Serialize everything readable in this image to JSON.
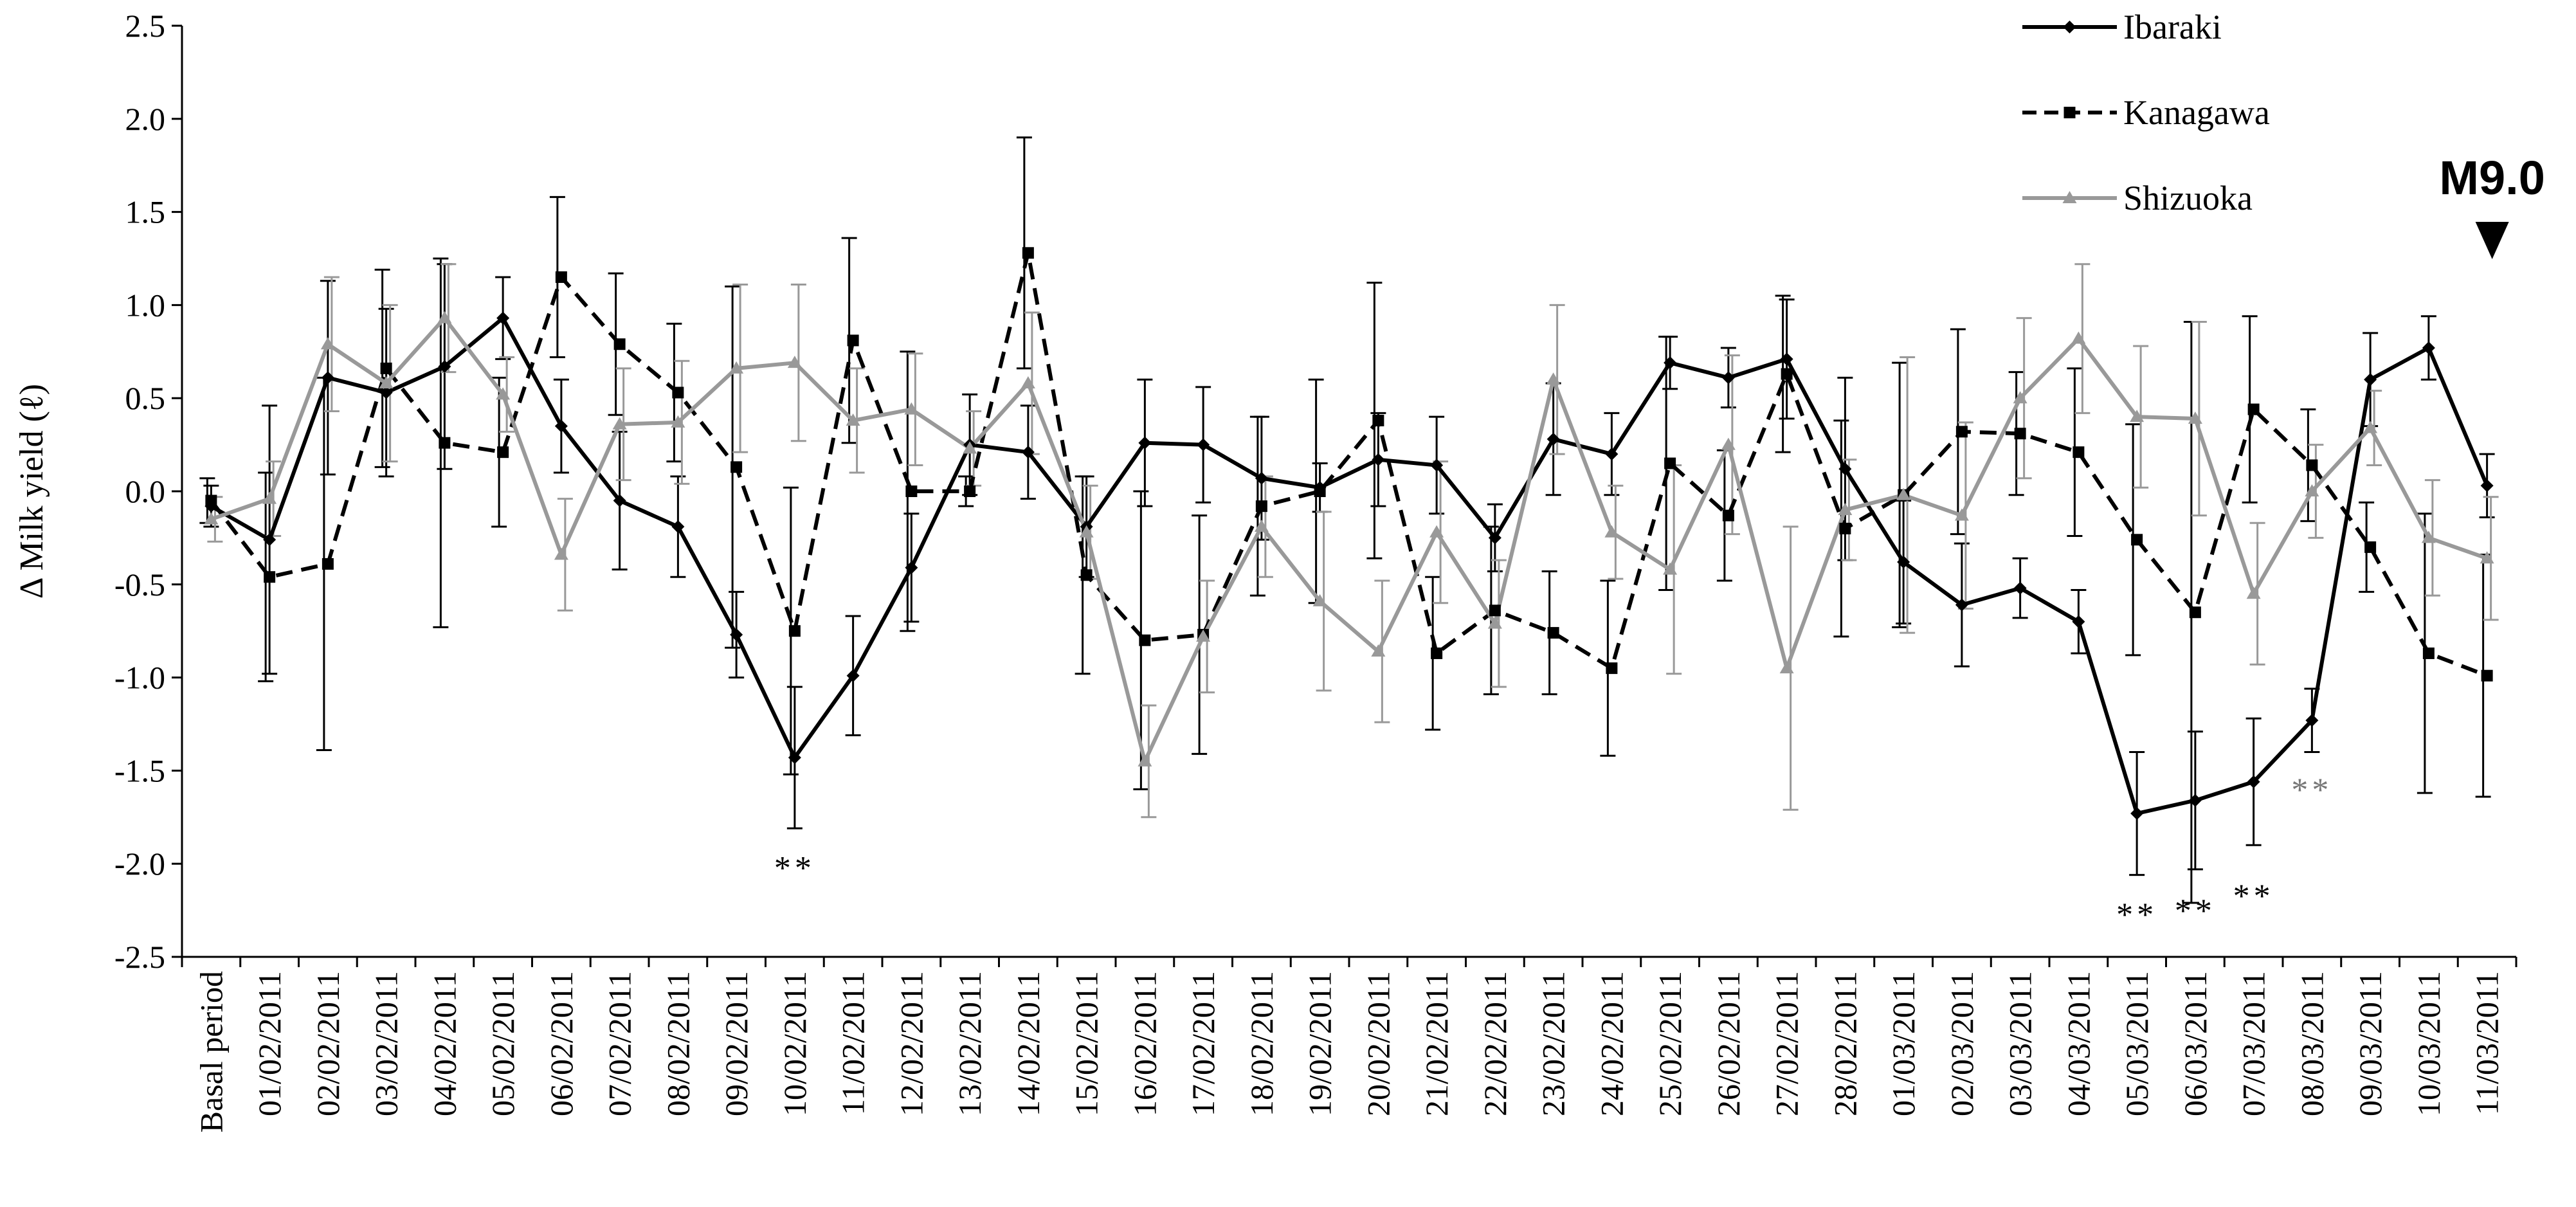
{
  "chart_data": {
    "type": "line",
    "ylabel": "Δ Milk yield (ℓ)",
    "xlabel": "",
    "ylim": [
      -2.5,
      2.5
    ],
    "yticks": [
      2.5,
      2.0,
      1.5,
      1.0,
      0.5,
      0.0,
      -0.5,
      -1.0,
      -1.5,
      -2.0,
      -2.5
    ],
    "ytick_labels": [
      "2.5",
      "2.0",
      "1.5",
      "1.0",
      "0.5",
      "0.0",
      "-0.5",
      "-1.0",
      "-1.5",
      "-2.0",
      "-2.5"
    ],
    "grid": false,
    "legend_position": "top-right",
    "categories": [
      "Basal period",
      "01/02/2011",
      "02/02/2011",
      "03/02/2011",
      "04/02/2011",
      "05/02/2011",
      "06/02/2011",
      "07/02/2011",
      "08/02/2011",
      "09/02/2011",
      "10/02/2011",
      "11/02/2011",
      "12/02/2011",
      "13/02/2011",
      "14/02/2011",
      "15/02/2011",
      "16/02/2011",
      "17/02/2011",
      "18/02/2011",
      "19/02/2011",
      "20/02/2011",
      "21/02/2011",
      "22/02/2011",
      "23/02/2011",
      "24/02/2011",
      "25/02/2011",
      "26/02/2011",
      "27/02/2011",
      "28/02/2011",
      "01/03/2011",
      "02/03/2011",
      "03/03/2011",
      "04/03/2011",
      "05/03/2011",
      "06/03/2011",
      "07/03/2011",
      "08/03/2011",
      "09/03/2011",
      "10/03/2011",
      "11/03/2011"
    ],
    "series": [
      {
        "name": "Ibaraki",
        "color": "#000000",
        "dash": "solid",
        "marker": "diamond",
        "values": [
          -0.08,
          -0.26,
          0.61,
          0.53,
          0.67,
          0.93,
          0.35,
          -0.05,
          -0.19,
          -0.77,
          -1.43,
          -0.99,
          -0.41,
          0.25,
          0.21,
          -0.19,
          0.26,
          0.25,
          0.07,
          0.02,
          0.17,
          0.14,
          -0.25,
          0.28,
          0.2,
          0.69,
          0.61,
          0.71,
          0.12,
          -0.38,
          -0.61,
          -0.52,
          -0.7,
          -1.73,
          -1.66,
          -1.56,
          -1.23,
          0.6,
          0.77,
          0.03
        ],
        "errors": [
          0.11,
          0.72,
          0.52,
          0.45,
          0.55,
          0.22,
          0.25,
          0.37,
          0.27,
          0.23,
          0.38,
          0.32,
          0.29,
          0.27,
          0.25,
          0.27,
          0.34,
          0.31,
          0.33,
          0.13,
          0.25,
          0.26,
          0.18,
          0.3,
          0.22,
          0.14,
          0.16,
          0.32,
          0.49,
          0.33,
          0.33,
          0.16,
          0.17,
          0.33,
          0.37,
          0.34,
          0.17,
          0.25,
          0.17,
          0.17
        ]
      },
      {
        "name": "Kanagawa",
        "color": "#000000",
        "dash": "dashed",
        "marker": "square",
        "values": [
          -0.05,
          -0.46,
          -0.39,
          0.66,
          0.26,
          0.21,
          1.15,
          0.79,
          0.53,
          0.13,
          -0.75,
          0.81,
          0.0,
          0.0,
          1.28,
          -0.45,
          -0.8,
          -0.77,
          -0.08,
          0.0,
          0.38,
          -0.87,
          -0.64,
          -0.76,
          -0.95,
          0.15,
          -0.13,
          0.63,
          -0.2,
          -0.02,
          0.32,
          0.31,
          0.21,
          -0.26,
          -0.65,
          0.44,
          0.14,
          -0.3,
          -0.87,
          -0.99
        ],
        "errors": [
          0.12,
          0.56,
          1.0,
          0.53,
          0.99,
          0.4,
          0.43,
          0.38,
          0.37,
          0.97,
          0.77,
          0.55,
          0.75,
          0.08,
          0.62,
          0.53,
          0.8,
          0.64,
          0.48,
          0.6,
          0.74,
          0.41,
          0.45,
          0.33,
          0.47,
          0.68,
          0.35,
          0.42,
          0.58,
          0.71,
          0.55,
          0.33,
          0.45,
          0.62,
          1.56,
          0.5,
          0.3,
          0.24,
          0.75,
          0.65
        ]
      },
      {
        "name": "Shizuoka",
        "color": "#999999",
        "dash": "solid",
        "marker": "triangle",
        "values": [
          -0.15,
          -0.04,
          0.79,
          0.58,
          0.93,
          0.52,
          -0.34,
          0.36,
          0.37,
          0.66,
          0.69,
          0.38,
          0.44,
          0.23,
          0.58,
          -0.22,
          -1.45,
          -0.78,
          -0.19,
          -0.59,
          -0.86,
          -0.22,
          -0.71,
          0.6,
          -0.22,
          -0.42,
          0.25,
          -0.95,
          -0.1,
          -0.02,
          -0.13,
          0.5,
          0.82,
          0.4,
          0.39,
          -0.55,
          0.0,
          0.34,
          -0.25,
          -0.36
        ],
        "errors": [
          0.12,
          0.2,
          0.36,
          0.42,
          0.29,
          0.2,
          0.3,
          0.3,
          0.33,
          0.45,
          0.42,
          0.28,
          0.3,
          0.2,
          0.38,
          0.25,
          0.3,
          0.3,
          0.27,
          0.48,
          0.38,
          0.38,
          0.34,
          0.4,
          0.25,
          0.56,
          0.48,
          0.76,
          0.27,
          0.74,
          0.5,
          0.43,
          0.4,
          0.38,
          0.52,
          0.38,
          0.25,
          0.2,
          0.31,
          0.33
        ]
      }
    ],
    "annotations": [
      {
        "text": "**",
        "category_index": 10,
        "y": -2.02,
        "color": "#000000"
      },
      {
        "text": "**",
        "category_index": 33,
        "y": -2.27,
        "color": "#000000"
      },
      {
        "text": "**",
        "category_index": 34,
        "y": -2.25,
        "color": "#000000"
      },
      {
        "text": "**",
        "category_index": 35,
        "y": -2.17,
        "color": "#000000"
      },
      {
        "text": "**",
        "category_index": 36,
        "y": -1.6,
        "color": "#777777"
      }
    ],
    "event_marker": {
      "text": "M9.0",
      "category_index": 39,
      "symbol": "▼"
    }
  }
}
